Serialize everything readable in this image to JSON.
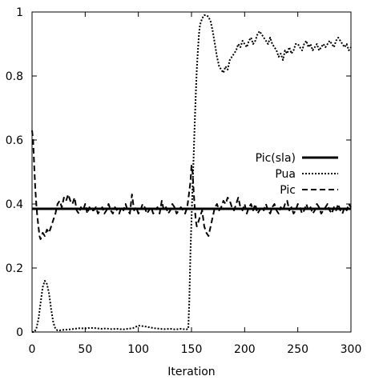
{
  "chart_data": {
    "type": "line",
    "title": "",
    "xlabel": "Iteration",
    "ylabel": "",
    "xlim": [
      0,
      300
    ],
    "ylim": [
      0,
      1
    ],
    "grid": false,
    "legend_position": "center-right",
    "x_ticks": [
      {
        "value": 0,
        "label": "0"
      },
      {
        "value": 50,
        "label": "50"
      },
      {
        "value": 100,
        "label": "100"
      },
      {
        "value": 150,
        "label": "150"
      },
      {
        "value": 200,
        "label": "200"
      },
      {
        "value": 250,
        "label": "250"
      },
      {
        "value": 300,
        "label": "300"
      }
    ],
    "y_ticks": [
      {
        "value": 0,
        "label": "0"
      },
      {
        "value": 0.2,
        "label": "0.2"
      },
      {
        "value": 0.4,
        "label": "0.4"
      },
      {
        "value": 0.6,
        "label": "0.6"
      },
      {
        "value": 0.8,
        "label": "0.8"
      },
      {
        "value": 1,
        "label": "1"
      }
    ],
    "series": [
      {
        "name": "Pic(sla)",
        "style": "solid-thick",
        "color": "#000000",
        "x": [
          0,
          300
        ],
        "y": [
          0.385,
          0.385
        ]
      },
      {
        "name": "Pua",
        "style": "dotted",
        "color": "#000000",
        "x": [
          0,
          2,
          4,
          6,
          8,
          10,
          12,
          14,
          16,
          18,
          20,
          22,
          24,
          26,
          28,
          30,
          35,
          40,
          45,
          50,
          55,
          60,
          65,
          70,
          75,
          80,
          85,
          90,
          95,
          100,
          105,
          110,
          115,
          120,
          125,
          130,
          135,
          140,
          145,
          147,
          148,
          149,
          150,
          151,
          152,
          153,
          154,
          155,
          156,
          157,
          158,
          160,
          162,
          164,
          166,
          168,
          170,
          172,
          174,
          176,
          178,
          180,
          182,
          184,
          186,
          188,
          190,
          192,
          194,
          196,
          198,
          200,
          202,
          204,
          206,
          208,
          210,
          212,
          214,
          216,
          218,
          220,
          222,
          224,
          226,
          228,
          230,
          232,
          234,
          236,
          238,
          240,
          242,
          244,
          246,
          248,
          250,
          252,
          254,
          256,
          258,
          260,
          262,
          264,
          266,
          268,
          270,
          272,
          274,
          276,
          278,
          280,
          282,
          284,
          286,
          288,
          290,
          292,
          294,
          296,
          298,
          300
        ],
        "y": [
          0.0,
          0.0,
          0.01,
          0.04,
          0.09,
          0.14,
          0.16,
          0.15,
          0.12,
          0.07,
          0.03,
          0.01,
          0.005,
          0.005,
          0.006,
          0.007,
          0.008,
          0.01,
          0.012,
          0.011,
          0.013,
          0.012,
          0.01,
          0.011,
          0.009,
          0.01,
          0.008,
          0.01,
          0.012,
          0.02,
          0.018,
          0.015,
          0.012,
          0.01,
          0.009,
          0.01,
          0.008,
          0.01,
          0.008,
          0.01,
          0.1,
          0.25,
          0.35,
          0.45,
          0.55,
          0.65,
          0.74,
          0.82,
          0.88,
          0.93,
          0.96,
          0.98,
          0.99,
          0.99,
          0.985,
          0.97,
          0.94,
          0.9,
          0.86,
          0.83,
          0.82,
          0.81,
          0.83,
          0.82,
          0.85,
          0.86,
          0.87,
          0.88,
          0.9,
          0.89,
          0.91,
          0.9,
          0.89,
          0.91,
          0.92,
          0.9,
          0.91,
          0.93,
          0.94,
          0.93,
          0.92,
          0.91,
          0.9,
          0.92,
          0.9,
          0.89,
          0.88,
          0.86,
          0.87,
          0.85,
          0.88,
          0.87,
          0.89,
          0.87,
          0.88,
          0.9,
          0.9,
          0.89,
          0.88,
          0.9,
          0.91,
          0.89,
          0.9,
          0.88,
          0.89,
          0.9,
          0.88,
          0.89,
          0.9,
          0.89,
          0.9,
          0.91,
          0.9,
          0.89,
          0.91,
          0.92,
          0.91,
          0.9,
          0.89,
          0.9,
          0.88,
          0.89
        ]
      },
      {
        "name": "Pic",
        "style": "dashed",
        "color": "#000000",
        "x": [
          0,
          1,
          2,
          3,
          4,
          5,
          6,
          7,
          8,
          9,
          10,
          12,
          14,
          16,
          18,
          20,
          22,
          24,
          26,
          28,
          30,
          32,
          34,
          36,
          38,
          40,
          42,
          44,
          46,
          48,
          50,
          52,
          54,
          56,
          58,
          60,
          62,
          64,
          66,
          68,
          70,
          72,
          74,
          76,
          78,
          80,
          82,
          84,
          86,
          88,
          90,
          92,
          94,
          96,
          98,
          100,
          102,
          104,
          106,
          108,
          110,
          112,
          114,
          116,
          118,
          120,
          122,
          124,
          126,
          128,
          130,
          132,
          134,
          136,
          138,
          140,
          142,
          144,
          146,
          148,
          149,
          150,
          151,
          152,
          153,
          154,
          155,
          156,
          158,
          160,
          162,
          164,
          166,
          168,
          170,
          172,
          174,
          176,
          178,
          180,
          182,
          184,
          186,
          188,
          190,
          192,
          194,
          196,
          198,
          200,
          202,
          204,
          206,
          208,
          210,
          212,
          214,
          216,
          218,
          220,
          222,
          224,
          226,
          228,
          230,
          232,
          234,
          236,
          238,
          240,
          242,
          244,
          246,
          248,
          250,
          252,
          254,
          256,
          258,
          260,
          262,
          264,
          266,
          268,
          270,
          272,
          274,
          276,
          278,
          280,
          282,
          284,
          286,
          288,
          290,
          292,
          294,
          296,
          298,
          300
        ],
        "y": [
          0.63,
          0.6,
          0.52,
          0.45,
          0.4,
          0.36,
          0.33,
          0.3,
          0.29,
          0.3,
          0.31,
          0.3,
          0.32,
          0.31,
          0.33,
          0.35,
          0.37,
          0.4,
          0.41,
          0.39,
          0.42,
          0.41,
          0.43,
          0.41,
          0.4,
          0.42,
          0.38,
          0.37,
          0.39,
          0.38,
          0.4,
          0.37,
          0.39,
          0.38,
          0.38,
          0.39,
          0.37,
          0.38,
          0.39,
          0.37,
          0.38,
          0.4,
          0.38,
          0.37,
          0.39,
          0.38,
          0.37,
          0.39,
          0.38,
          0.4,
          0.38,
          0.37,
          0.43,
          0.38,
          0.39,
          0.37,
          0.38,
          0.4,
          0.39,
          0.37,
          0.38,
          0.39,
          0.37,
          0.38,
          0.39,
          0.37,
          0.41,
          0.38,
          0.39,
          0.37,
          0.38,
          0.4,
          0.39,
          0.37,
          0.38,
          0.39,
          0.38,
          0.37,
          0.39,
          0.44,
          0.47,
          0.52,
          0.5,
          0.44,
          0.39,
          0.35,
          0.33,
          0.34,
          0.36,
          0.38,
          0.33,
          0.31,
          0.3,
          0.33,
          0.36,
          0.39,
          0.4,
          0.38,
          0.39,
          0.41,
          0.4,
          0.42,
          0.41,
          0.39,
          0.38,
          0.4,
          0.42,
          0.39,
          0.38,
          0.4,
          0.37,
          0.39,
          0.4,
          0.38,
          0.4,
          0.37,
          0.38,
          0.39,
          0.38,
          0.4,
          0.38,
          0.37,
          0.39,
          0.4,
          0.38,
          0.37,
          0.39,
          0.38,
          0.4,
          0.41,
          0.38,
          0.39,
          0.37,
          0.38,
          0.4,
          0.39,
          0.37,
          0.38,
          0.4,
          0.38,
          0.39,
          0.37,
          0.38,
          0.4,
          0.39,
          0.37,
          0.38,
          0.39,
          0.4,
          0.38,
          0.37,
          0.39,
          0.38,
          0.4,
          0.38,
          0.37,
          0.39,
          0.38,
          0.4,
          0.39
        ]
      }
    ]
  }
}
